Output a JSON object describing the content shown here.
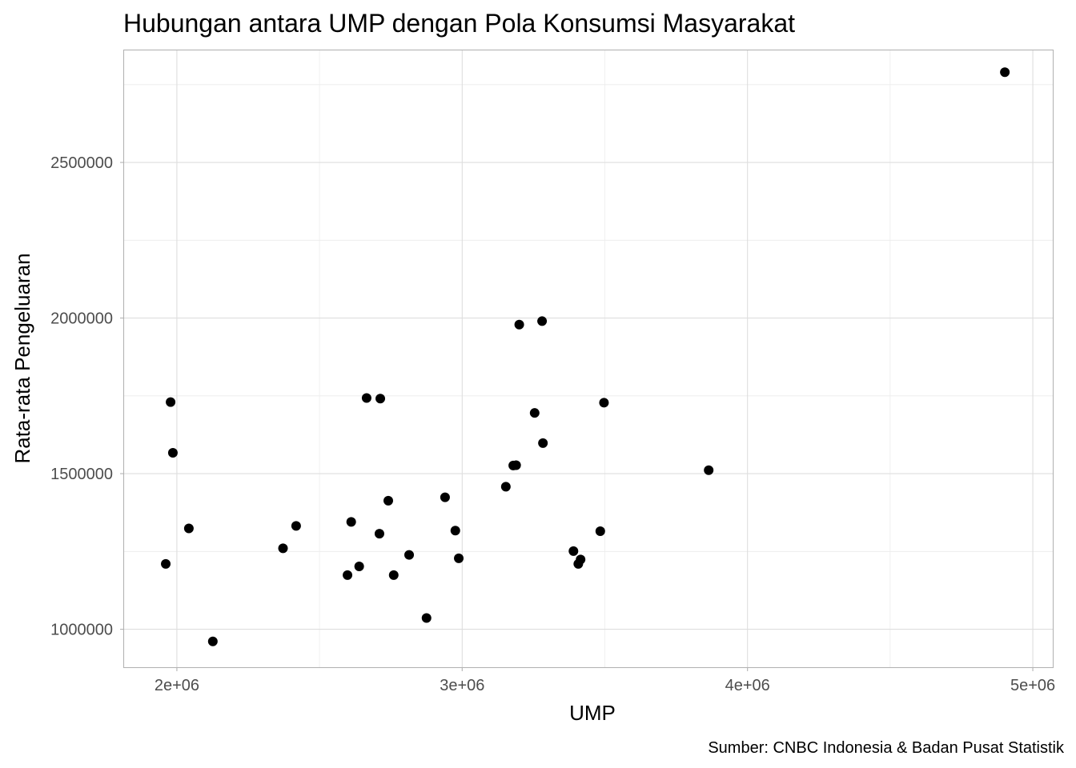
{
  "chart_data": {
    "type": "scatter",
    "title": "Hubungan antara UMP dengan Pola Konsumsi Masyarakat",
    "xlabel": "UMP",
    "ylabel": "Rata-rata Pengeluaran",
    "caption": "Sumber: CNBC Indonesia & Badan Pusat Statistik",
    "xlim": [
      1815000,
      5070000
    ],
    "ylim": [
      878000,
      2860000
    ],
    "x_ticks": [
      2000000,
      3000000,
      4000000,
      5000000
    ],
    "x_tick_labels": [
      "2e+06",
      "3e+06",
      "4e+06",
      "5e+06"
    ],
    "y_ticks": [
      1000000,
      1500000,
      2000000,
      2500000
    ],
    "y_tick_labels": [
      "1000000",
      "1500000",
      "2000000",
      "2500000"
    ],
    "grid": true,
    "point_color": "#000000",
    "points": [
      {
        "x": 1961000,
        "y": 1210000
      },
      {
        "x": 1978000,
        "y": 1730000
      },
      {
        "x": 1986000,
        "y": 1567000
      },
      {
        "x": 2042000,
        "y": 1324000
      },
      {
        "x": 2126000,
        "y": 961000
      },
      {
        "x": 2372000,
        "y": 1260000
      },
      {
        "x": 2418000,
        "y": 1332000
      },
      {
        "x": 2598000,
        "y": 1174000
      },
      {
        "x": 2611000,
        "y": 1345000
      },
      {
        "x": 2639000,
        "y": 1202000
      },
      {
        "x": 2665000,
        "y": 1743000
      },
      {
        "x": 2710000,
        "y": 1307000
      },
      {
        "x": 2713000,
        "y": 1741000
      },
      {
        "x": 2741000,
        "y": 1413000
      },
      {
        "x": 2760000,
        "y": 1174000
      },
      {
        "x": 2814000,
        "y": 1239000
      },
      {
        "x": 2875000,
        "y": 1036000
      },
      {
        "x": 2940000,
        "y": 1424000
      },
      {
        "x": 2976000,
        "y": 1317000
      },
      {
        "x": 2988000,
        "y": 1228000
      },
      {
        "x": 3153000,
        "y": 1458000
      },
      {
        "x": 3179000,
        "y": 1526000
      },
      {
        "x": 3189000,
        "y": 1527000
      },
      {
        "x": 3200000,
        "y": 1979000
      },
      {
        "x": 3254000,
        "y": 1695000
      },
      {
        "x": 3280000,
        "y": 1990000
      },
      {
        "x": 3283000,
        "y": 1598000
      },
      {
        "x": 3390000,
        "y": 1251000
      },
      {
        "x": 3407000,
        "y": 1210000
      },
      {
        "x": 3415000,
        "y": 1224000
      },
      {
        "x": 3484000,
        "y": 1315000
      },
      {
        "x": 3497000,
        "y": 1728000
      },
      {
        "x": 3864000,
        "y": 1511000
      },
      {
        "x": 4902000,
        "y": 2790000
      }
    ]
  }
}
